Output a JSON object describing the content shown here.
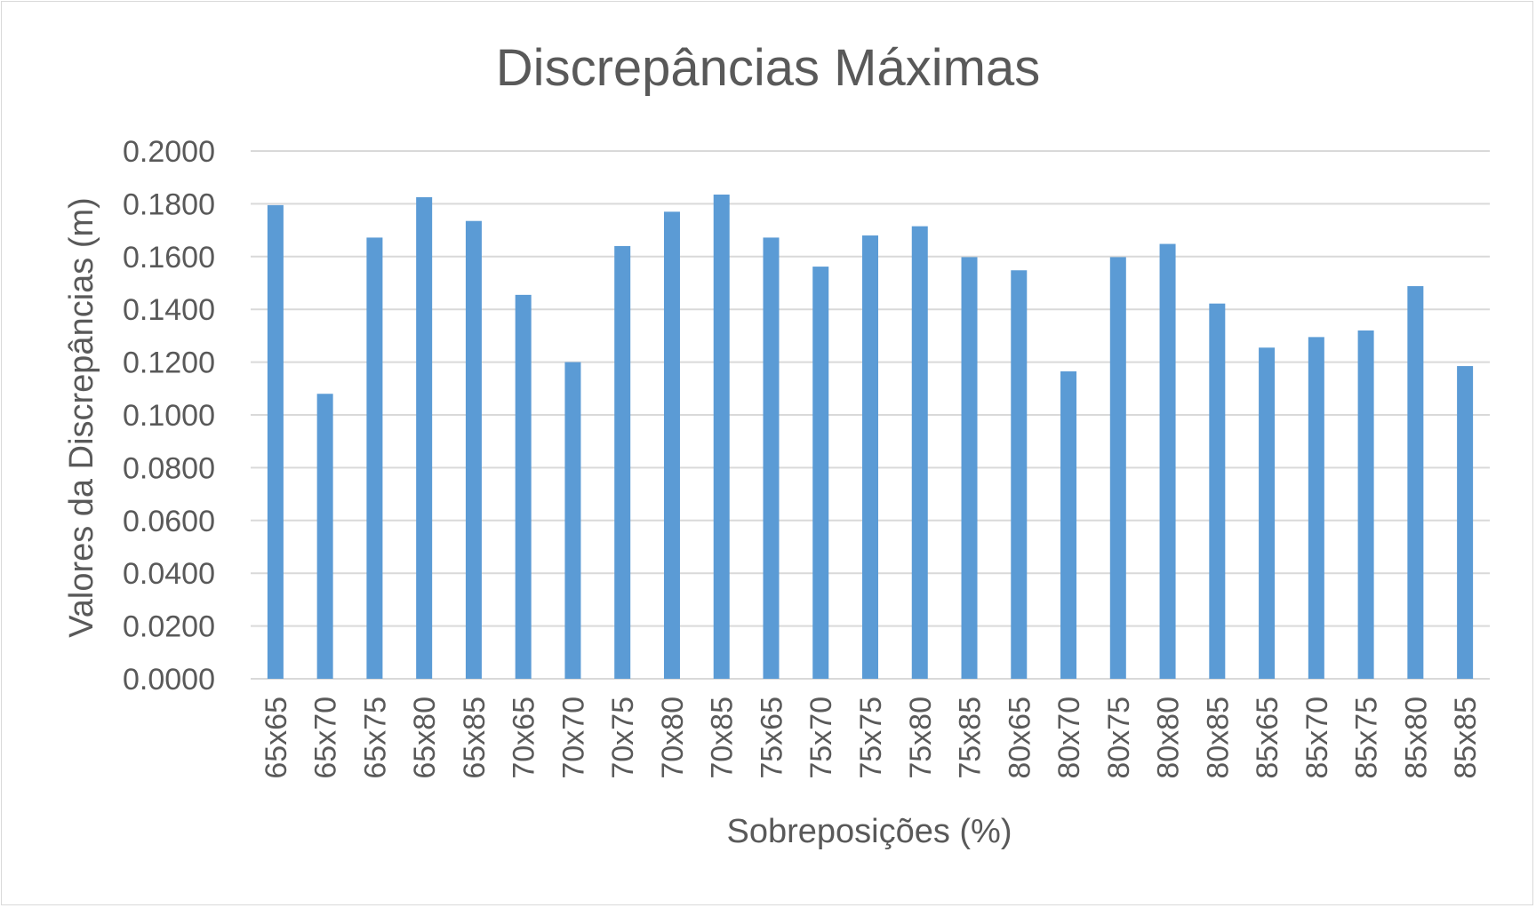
{
  "chart_data": {
    "type": "bar",
    "title": "Discrepâncias Máximas",
    "xlabel": "Sobreposições (%)",
    "ylabel": "Valores  da Discrepâncias (m)",
    "ylim": [
      0,
      0.2
    ],
    "y_ticks": [
      "0.0000",
      "0.0200",
      "0.0400",
      "0.0600",
      "0.0800",
      "0.1000",
      "0.1200",
      "0.1400",
      "0.1600",
      "0.1800",
      "0.2000"
    ],
    "grid": true,
    "legend": "none",
    "categories": [
      "65x65",
      "65x70",
      "65x75",
      "65x80",
      "65x85",
      "70x65",
      "70x70",
      "70x75",
      "70x80",
      "70x85",
      "75x65",
      "75x70",
      "75x75",
      "75x80",
      "75x85",
      "80x65",
      "80x70",
      "80x75",
      "80x80",
      "80x85",
      "85x65",
      "85x70",
      "85x75",
      "85x80",
      "85x85"
    ],
    "values": [
      0.1795,
      0.108,
      0.1672,
      0.1825,
      0.1735,
      0.1455,
      0.12,
      0.164,
      0.177,
      0.1835,
      0.1672,
      0.1562,
      0.168,
      0.1715,
      0.1598,
      0.1548,
      0.1165,
      0.1598,
      0.1648,
      0.1422,
      0.1255,
      0.1295,
      0.132,
      0.1488,
      0.1185
    ],
    "colors": {
      "bar": "#5b9bd5",
      "grid": "#d9d9d9",
      "text": "#595959"
    }
  }
}
